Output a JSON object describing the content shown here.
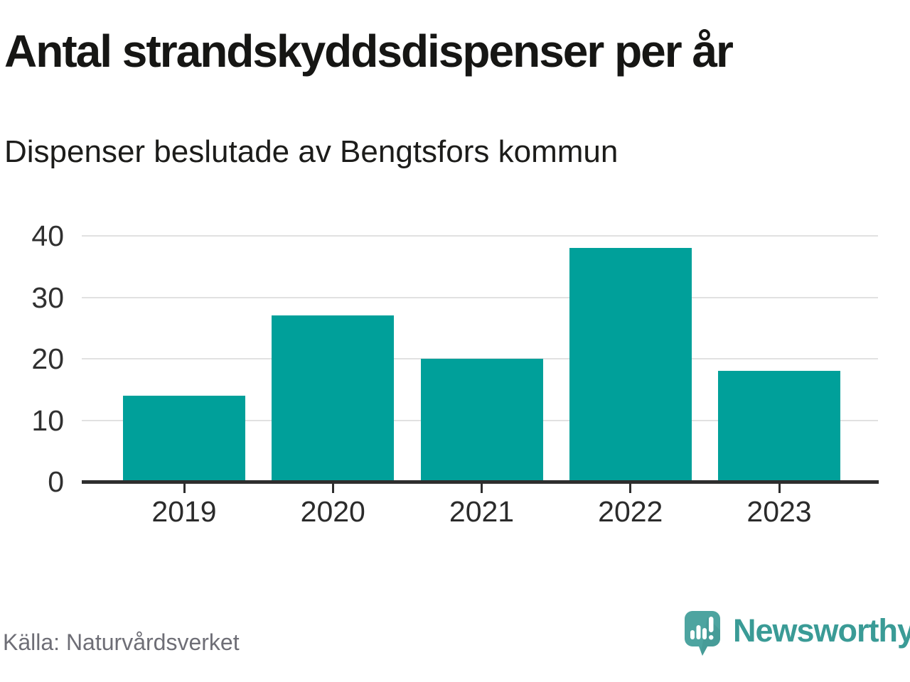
{
  "header": {
    "title": "Antal strandskyddsdispenser per år",
    "subtitle": "Dispenser beslutade av Bengtsfors kommun"
  },
  "chart_data": {
    "type": "bar",
    "categories": [
      "2019",
      "2020",
      "2021",
      "2022",
      "2023"
    ],
    "values": [
      14,
      27,
      20,
      38,
      18
    ],
    "title": "Antal strandskyddsdispenser per år",
    "subtitle": "Dispenser beslutade av Bengtsfors kommun",
    "xlabel": "",
    "ylabel": "",
    "ylim": [
      0,
      40
    ],
    "yticks": [
      0,
      10,
      20,
      30,
      40
    ],
    "grid": true,
    "legend": "none",
    "bar_color": "#00a09a"
  },
  "footer": {
    "source": "Källa: Naturvårdsverket",
    "brand": "Newsworthy"
  },
  "colors": {
    "bar": "#00a09a",
    "gridline": "#e1e1e1",
    "axis": "#2e2e2e",
    "title_text": "#161614",
    "source_text": "#6e6e76",
    "logo_teal": "#4da4a0",
    "logo_text_teal": "#3a9b96"
  },
  "icons": {
    "logo_icon": "newsworthy-speech-bubble-bar-chart-icon"
  }
}
